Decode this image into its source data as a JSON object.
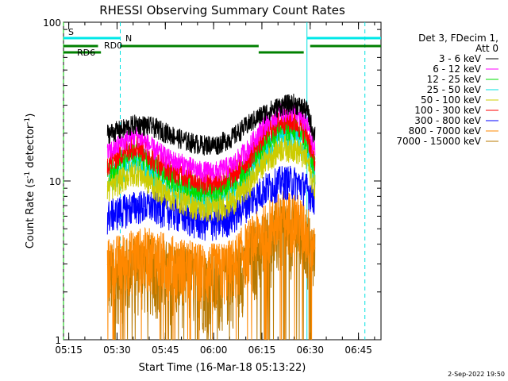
{
  "chart_data": {
    "type": "line",
    "title": "RHESSI Observing Summary Count Rates",
    "xlabel": "Start Time (16-Mar-18 05:13:22)",
    "ylabel_main": "Count Rate (s",
    "ylabel_sup1": "-1",
    "ylabel_mid": " detector",
    "ylabel_sup2": "-1",
    "ylabel_end": ")",
    "y_scale": "log",
    "ylim": [
      1,
      100
    ],
    "xlim_minutes": [
      "05:13:22",
      "06:52:00"
    ],
    "x_ticks": [
      "05:15",
      "05:30",
      "05:45",
      "06:00",
      "06:15",
      "06:30",
      "06:45"
    ],
    "y_tick_labels": [
      "1",
      "10",
      "100"
    ],
    "footer_date": "2-Sep-2022 19:50",
    "legend": {
      "header_line1": "Det 3, FDecim 1,",
      "header_line2": "Att 0",
      "entries": [
        {
          "label": "3 - 6 keV",
          "color": "#000000"
        },
        {
          "label": "6 - 12 keV",
          "color": "#ff00ff"
        },
        {
          "label": "12 - 25 keV",
          "color": "#00dd00"
        },
        {
          "label": "25 - 50 keV",
          "color": "#00e0e0"
        },
        {
          "label": "50 - 100 keV",
          "color": "#cccc00"
        },
        {
          "label": "100 - 300 keV",
          "color": "#ff0000"
        },
        {
          "label": "300 - 800 keV",
          "color": "#0000ff"
        },
        {
          "label": "800 - 7000 keV",
          "color": "#ff8800"
        },
        {
          "label": "7000 - 15000 keV",
          "color": "#b87800"
        }
      ]
    },
    "series_profile": {
      "time": [
        "05:27",
        "05:31",
        "05:36",
        "05:41",
        "05:46",
        "05:51",
        "05:56",
        "06:01",
        "06:06",
        "06:11",
        "06:16",
        "06:21",
        "06:25",
        "06:29",
        "06:31"
      ],
      "3-6 keV": [
        20,
        21,
        23,
        22,
        20,
        18,
        17,
        17,
        19,
        23,
        27,
        30,
        31,
        28,
        20
      ],
      "100-300 keV": [
        13,
        15,
        17,
        14,
        12,
        11,
        10,
        10,
        11,
        14,
        20,
        24,
        24,
        20,
        14
      ],
      "300-800 keV": [
        6,
        6.5,
        7,
        7,
        6.5,
        6,
        5.5,
        5.5,
        6,
        7.5,
        9,
        10,
        10,
        9,
        8
      ],
      "800-7000 keV": [
        3,
        3.2,
        3.5,
        3.5,
        3.2,
        3,
        2.8,
        2.8,
        3,
        4,
        5,
        6,
        6,
        5,
        4
      ]
    },
    "flags": {
      "S_label": "S",
      "N_label": "N",
      "RD6_label": "RD6",
      "RD0_label": "RD0",
      "saa_band": [
        {
          "start": "05:13:22",
          "end": "05:31:00"
        },
        {
          "start": "06:29:00",
          "end": "06:52:00"
        }
      ],
      "rd0_band": [
        {
          "start": "05:31:00",
          "end": "06:14:00"
        },
        {
          "start": "06:14:00",
          "end": "06:28:00",
          "level": "low"
        },
        {
          "start": "06:30:00",
          "end": "06:52:00"
        }
      ],
      "rd6_band": [
        {
          "start": "05:13:22",
          "end": "05:25:00"
        }
      ]
    },
    "vertical_markers": [
      {
        "time": "05:13:22",
        "color": "#00c800",
        "style": "dashed"
      },
      {
        "time": "05:31:00",
        "color": "#00e0e0",
        "style": "dashed"
      },
      {
        "time": "06:29:00",
        "color": "#00e0e0",
        "style": "solid"
      },
      {
        "time": "06:47:00",
        "color": "#00e0e0",
        "style": "dashed"
      }
    ]
  }
}
